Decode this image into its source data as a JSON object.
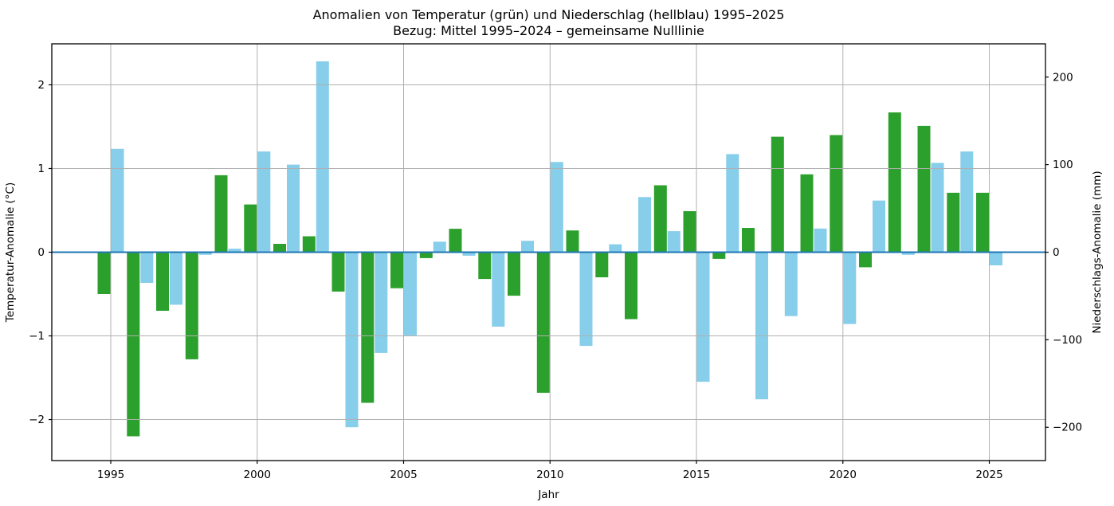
{
  "chart_data": {
    "type": "bar",
    "title": "Anomalien von Temperatur (grün) und Niederschlag (hellblau) 1995–2025",
    "subtitle": "Bezug: Mittel 1995–2024 – gemeinsame Nulllinie",
    "xlabel": "Jahr",
    "ylabel_left": "Temperatur-Anomalie (°C)",
    "ylabel_right": "Niederschlags-Anomalie (mm)",
    "x": [
      1995,
      1996,
      1997,
      1998,
      1999,
      2000,
      2001,
      2002,
      2003,
      2004,
      2005,
      2006,
      2007,
      2008,
      2009,
      2010,
      2011,
      2012,
      2013,
      2014,
      2015,
      2016,
      2017,
      2018,
      2019,
      2020,
      2021,
      2022,
      2023,
      2024,
      2025
    ],
    "series": [
      {
        "name": "Temperatur-Anomalie",
        "unit": "°C",
        "axis": "left",
        "color": "#2ca02c",
        "values": [
          -0.5,
          -2.2,
          -0.7,
          -1.28,
          0.92,
          0.57,
          0.1,
          0.19,
          -0.47,
          -1.8,
          -0.43,
          -0.07,
          0.28,
          -0.32,
          -0.52,
          -1.68,
          0.26,
          -0.3,
          -0.8,
          0.8,
          0.49,
          -0.08,
          0.29,
          1.38,
          0.93,
          1.4,
          -0.18,
          1.67,
          1.51,
          0.71,
          0.71
        ]
      },
      {
        "name": "Niederschlags-Anomalie",
        "unit": "mm",
        "axis": "right",
        "color": "#87ceeb",
        "values": [
          118,
          -35,
          -60,
          -3,
          4,
          115,
          100,
          218,
          -200,
          -115,
          -95,
          12,
          -4,
          -85,
          13,
          103,
          -107,
          9,
          63,
          24,
          -148,
          112,
          -168,
          -73,
          27,
          -82,
          59,
          -3,
          102,
          115,
          -15
        ]
      }
    ],
    "x_ticks": [
      1995,
      2000,
      2005,
      2010,
      2015,
      2020,
      2025
    ],
    "left_ticks": [
      -2,
      -1,
      0,
      1,
      2
    ],
    "right_ticks": [
      -200,
      -100,
      0,
      100,
      200
    ],
    "ylim_left": [
      -2.49,
      2.49
    ],
    "ylim_right": [
      -238,
      238
    ],
    "grid": true,
    "legend": "none",
    "colors": {
      "temp_bar": "#2ca02c",
      "precip_bar": "#87ceeb",
      "zero_line": "#1f77b4",
      "grid_line": "#b0b0b0",
      "spine": "#000000",
      "background": "#ffffff"
    }
  }
}
